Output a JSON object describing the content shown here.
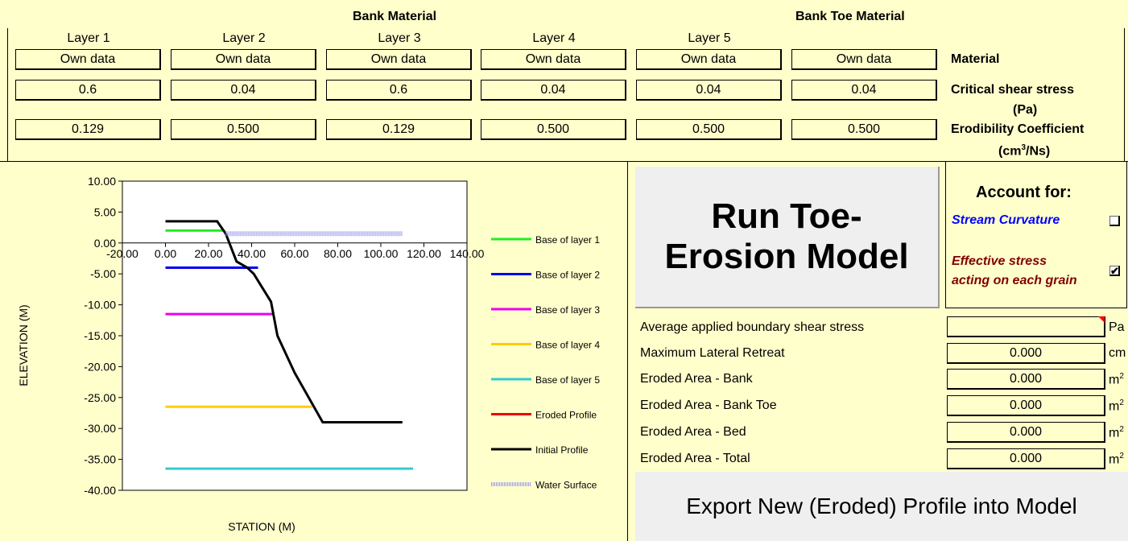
{
  "header": {
    "bank_material": "Bank Material",
    "bank_toe_material": "Bank Toe Material",
    "layers": [
      "Layer 1",
      "Layer 2",
      "Layer 3",
      "Layer 4",
      "Layer 5"
    ]
  },
  "table": {
    "material": [
      "Own data",
      "Own data",
      "Own data",
      "Own data",
      "Own data",
      "Own data"
    ],
    "critical_shear": [
      "0.6",
      "0.04",
      "0.6",
      "0.04",
      "0.04",
      "0.04"
    ],
    "erodibility": [
      "0.129",
      "0.500",
      "0.129",
      "0.500",
      "0.500",
      "0.500"
    ],
    "labels": {
      "material": "Material",
      "critical_shear_1": "Critical shear stress",
      "critical_shear_2": "(Pa)",
      "erodibility_1": "Erodibility Coefficient",
      "erodibility_2_pre": "(cm",
      "erodibility_2_sup": "3",
      "erodibility_2_post": "/Ns)"
    }
  },
  "chart_data": {
    "type": "line",
    "xlabel": "STATION (M)",
    "ylabel": "ELEVATION (M)",
    "xlim": [
      -20,
      140
    ],
    "ylim": [
      -40,
      10
    ],
    "x_ticks": [
      "-20.00",
      "0.00",
      "20.00",
      "40.00",
      "60.00",
      "80.00",
      "100.00",
      "120.00",
      "140.00"
    ],
    "y_ticks": [
      "10.00",
      "5.00",
      "0.00",
      "-5.00",
      "-10.00",
      "-15.00",
      "-20.00",
      "-25.00",
      "-30.00",
      "-35.00",
      "-40.00"
    ],
    "legend_position": "right",
    "series": [
      {
        "name": "Base of layer 1",
        "color": "#22ee22",
        "points": [
          [
            0,
            2
          ],
          [
            27,
            2
          ]
        ]
      },
      {
        "name": "Base of layer 2",
        "color": "#0000ee",
        "points": [
          [
            0,
            -4
          ],
          [
            43,
            -4
          ]
        ]
      },
      {
        "name": "Base of layer 3",
        "color": "#ee00ee",
        "points": [
          [
            0,
            -11.5
          ],
          [
            50,
            -11.5
          ]
        ]
      },
      {
        "name": "Base of layer 4",
        "color": "#ffcc00",
        "points": [
          [
            0,
            -26.5
          ],
          [
            68,
            -26.5
          ]
        ]
      },
      {
        "name": "Base of layer 5",
        "color": "#33cccc",
        "points": [
          [
            0,
            -36.5
          ],
          [
            115,
            -36.5
          ]
        ]
      },
      {
        "name": "Eroded Profile",
        "color": "#ee0000",
        "points": []
      },
      {
        "name": "Initial Profile",
        "color": "#000000",
        "points": [
          [
            0,
            3.5
          ],
          [
            24,
            3.5
          ],
          [
            28,
            1.5
          ],
          [
            33,
            -3
          ],
          [
            38,
            -4
          ],
          [
            41,
            -5
          ],
          [
            49,
            -9.5
          ],
          [
            52,
            -15
          ],
          [
            60,
            -21
          ],
          [
            73,
            -29
          ],
          [
            110,
            -29
          ]
        ]
      },
      {
        "name": "Water Surface",
        "color": "#9999ee",
        "points": [
          [
            28,
            1.5
          ],
          [
            110,
            1.5
          ]
        ]
      }
    ]
  },
  "run_button": {
    "line1": "Run Toe-",
    "line2": "Erosion Model"
  },
  "account": {
    "title": "Account for:",
    "stream_curvature": "Stream Curvature",
    "effective_1": "Effective stress",
    "effective_2": "acting on each grain",
    "stream_checked_mark": "",
    "effective_checked_mark": "✔"
  },
  "results": [
    {
      "label": "Average applied boundary shear stress",
      "value": "",
      "unit": "Pa",
      "sup": ""
    },
    {
      "label": "Maximum Lateral Retreat",
      "value": "0.000",
      "unit": "cm",
      "sup": ""
    },
    {
      "label": "Eroded Area - Bank",
      "value": "0.000",
      "unit": "m",
      "sup": "2"
    },
    {
      "label": "Eroded Area - Bank Toe",
      "value": "0.000",
      "unit": "m",
      "sup": "2"
    },
    {
      "label": "Eroded Area - Bed",
      "value": "0.000",
      "unit": "m",
      "sup": "2"
    },
    {
      "label": "Eroded Area - Total",
      "value": "0.000",
      "unit": "m",
      "sup": "2"
    }
  ],
  "export_button": "Export New (Eroded) Profile into Model"
}
